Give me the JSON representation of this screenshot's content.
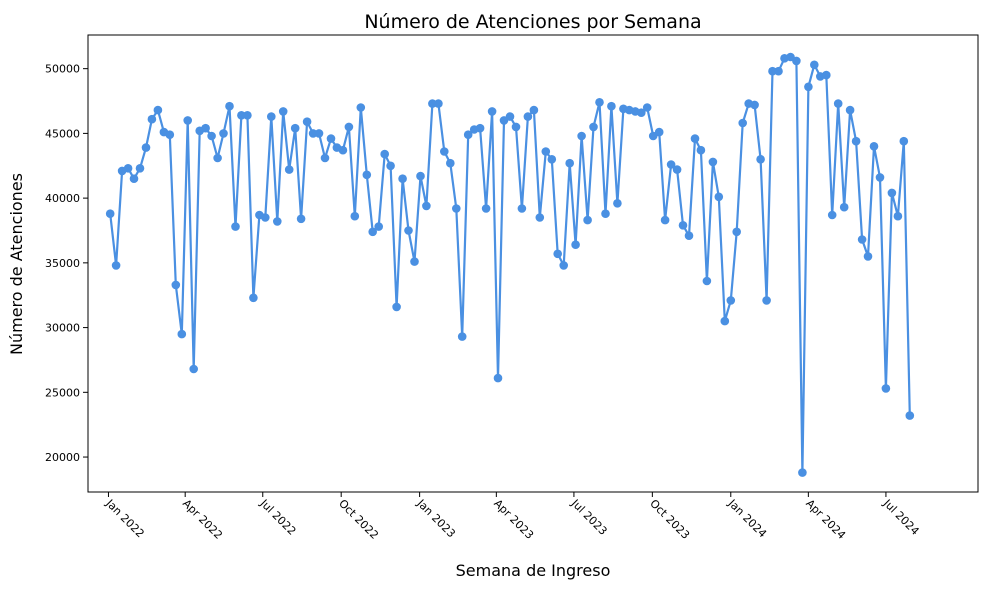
{
  "chart_data": {
    "type": "line",
    "title": "Número de Atenciones por Semana",
    "xlabel": "Semana de Ingreso",
    "ylabel": "Número de Atenciones",
    "color": "#4a90e2",
    "grid": false,
    "legend": "none",
    "xlim": [
      "2021-12-08",
      "2024-10-17"
    ],
    "ylim": [
      17300,
      52600
    ],
    "x_ticks": [
      {
        "date": "2022-01-01",
        "label": "Jan 2022"
      },
      {
        "date": "2022-04-01",
        "label": "Apr 2022"
      },
      {
        "date": "2022-07-01",
        "label": "Jul 2022"
      },
      {
        "date": "2022-10-01",
        "label": "Oct 2022"
      },
      {
        "date": "2023-01-01",
        "label": "Jan 2023"
      },
      {
        "date": "2023-04-01",
        "label": "Apr 2023"
      },
      {
        "date": "2023-07-01",
        "label": "Jul 2023"
      },
      {
        "date": "2023-10-01",
        "label": "Oct 2023"
      },
      {
        "date": "2024-01-01",
        "label": "Jan 2024"
      },
      {
        "date": "2024-04-01",
        "label": "Apr 2024"
      },
      {
        "date": "2024-07-01",
        "label": "Jul 2024"
      }
    ],
    "y_ticks": [
      {
        "value": 20000,
        "label": "20000"
      },
      {
        "value": 25000,
        "label": "25000"
      },
      {
        "value": 30000,
        "label": "30000"
      },
      {
        "value": 35000,
        "label": "35000"
      },
      {
        "value": 40000,
        "label": "40000"
      },
      {
        "value": 45000,
        "label": "45000"
      },
      {
        "value": 50000,
        "label": "50000"
      }
    ],
    "series": [
      {
        "x": [
          "2022-01-03",
          "2022-01-10",
          "2022-01-17",
          "2022-01-24",
          "2022-01-31",
          "2022-02-07",
          "2022-02-14",
          "2022-02-21",
          "2022-02-28",
          "2022-03-07",
          "2022-03-14",
          "2022-03-21",
          "2022-03-28",
          "2022-04-04",
          "2022-04-11",
          "2022-04-18",
          "2022-04-25",
          "2022-05-02",
          "2022-05-09",
          "2022-05-16",
          "2022-05-23",
          "2022-05-30",
          "2022-06-06",
          "2022-06-13",
          "2022-06-20",
          "2022-06-27",
          "2022-07-04",
          "2022-07-11",
          "2022-07-18",
          "2022-07-25",
          "2022-08-01",
          "2022-08-08",
          "2022-08-15",
          "2022-08-22",
          "2022-08-29",
          "2022-09-05",
          "2022-09-12",
          "2022-09-19",
          "2022-09-26",
          "2022-10-03",
          "2022-10-10",
          "2022-10-17",
          "2022-10-24",
          "2022-10-31",
          "2022-11-07",
          "2022-11-14",
          "2022-11-21",
          "2022-11-28",
          "2022-12-05",
          "2022-12-12",
          "2022-12-19",
          "2022-12-26",
          "2023-01-02",
          "2023-01-09",
          "2023-01-16",
          "2023-01-23",
          "2023-01-30",
          "2023-02-06",
          "2023-02-13",
          "2023-02-20",
          "2023-02-27",
          "2023-03-06",
          "2023-03-13",
          "2023-03-20",
          "2023-03-27",
          "2023-04-03",
          "2023-04-10",
          "2023-04-17",
          "2023-04-24",
          "2023-05-01",
          "2023-05-08",
          "2023-05-15",
          "2023-05-22",
          "2023-05-29",
          "2023-06-05",
          "2023-06-12",
          "2023-06-19",
          "2023-06-26",
          "2023-07-03",
          "2023-07-10",
          "2023-07-17",
          "2023-07-24",
          "2023-07-31",
          "2023-08-07",
          "2023-08-14",
          "2023-08-21",
          "2023-08-28",
          "2023-09-04",
          "2023-09-11",
          "2023-09-18",
          "2023-09-25",
          "2023-10-02",
          "2023-10-09",
          "2023-10-16",
          "2023-10-23",
          "2023-10-30",
          "2023-11-06",
          "2023-11-13",
          "2023-11-20",
          "2023-11-27",
          "2023-12-04",
          "2023-12-11",
          "2023-12-18",
          "2023-12-25",
          "2024-01-01",
          "2024-01-08",
          "2024-01-15",
          "2024-01-22",
          "2024-01-29",
          "2024-02-05",
          "2024-02-12",
          "2024-02-19",
          "2024-02-26",
          "2024-03-04",
          "2024-03-11",
          "2024-03-18",
          "2024-03-25",
          "2024-04-01",
          "2024-04-08",
          "2024-04-15",
          "2024-04-22",
          "2024-04-29",
          "2024-05-06",
          "2024-05-13",
          "2024-05-20",
          "2024-05-27",
          "2024-06-03",
          "2024-06-10",
          "2024-06-17",
          "2024-06-24",
          "2024-07-01",
          "2024-07-08",
          "2024-07-15",
          "2024-07-22",
          "2024-07-29"
        ],
        "values": [
          38800,
          34800,
          42100,
          42300,
          41500,
          42300,
          43900,
          46100,
          46800,
          45100,
          44900,
          33300,
          29500,
          46000,
          26800,
          45200,
          45400,
          44800,
          43100,
          45000,
          47100,
          37800,
          46400,
          46400,
          32300,
          38700,
          38500,
          46300,
          38200,
          46700,
          42200,
          45400,
          38400,
          45900,
          45000,
          45000,
          43100,
          44600,
          43900,
          43700,
          45500,
          38600,
          47000,
          41800,
          37400,
          37800,
          43400,
          42500,
          31600,
          41500,
          37500,
          35100,
          41700,
          39400,
          47300,
          47300,
          43600,
          42700,
          39200,
          29300,
          44900,
          45300,
          45400,
          39200,
          46700,
          26100,
          46000,
          46300,
          45500,
          39200,
          46300,
          46800,
          38500,
          43600,
          43000,
          35700,
          34800,
          42700,
          36400,
          44800,
          38300,
          45500,
          47400,
          38800,
          47100,
          39600,
          46900,
          46800,
          46700,
          46600,
          47000,
          44800,
          45100,
          38300,
          42600,
          42200,
          37900,
          37100,
          44600,
          43700,
          33600,
          42800,
          40100,
          30500,
          32100,
          37400,
          45800,
          47300,
          47200,
          43000,
          32100,
          49800,
          49800,
          50800,
          50900,
          50600,
          18800,
          48600,
          50300,
          49400,
          49500,
          38700,
          47300,
          39300,
          46800,
          44400,
          36800,
          35500,
          44000,
          41600,
          25300,
          40400,
          38600,
          44400,
          23200
        ]
      }
    ]
  }
}
